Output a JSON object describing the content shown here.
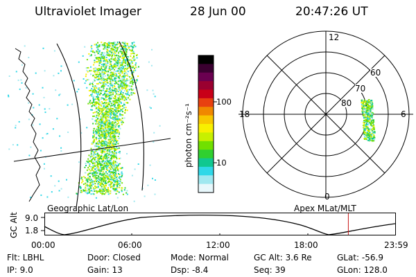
{
  "header": {
    "instrument": "Ultraviolet Imager",
    "date": "28 Jun 00",
    "time": "20:47:26 UT"
  },
  "colorbar": {
    "unit_label": "photon cm⁻²s⁻¹",
    "ticks": [
      "100",
      "10"
    ],
    "scale": "log",
    "colors": [
      "#000000",
      "#3a0030",
      "#6a0050",
      "#9a0030",
      "#c80018",
      "#e84010",
      "#f08800",
      "#f8c800",
      "#f8f000",
      "#c8f000",
      "#70e000",
      "#30d030",
      "#10c890",
      "#30d8e8",
      "#a0e8f0",
      "#e8f8fc"
    ]
  },
  "map_left": {
    "label": "Geographic Lat/Lon"
  },
  "polar_plot": {
    "label": "Apex MLat/MLT",
    "mlt_labels": {
      "top": "12",
      "left": "18",
      "right": "6",
      "bottom": "0"
    },
    "lat_labels": [
      "60",
      "70",
      "80"
    ]
  },
  "altitude_strip": {
    "ylabel": "GC Alt",
    "y_ticks": [
      "9.0",
      "1.8"
    ],
    "x_ticks": [
      "00:00",
      "06:00",
      "12:00",
      "18:00",
      "23:59"
    ],
    "current_time_fraction": 0.8665,
    "marker_color": "#c81414"
  },
  "status": {
    "col1": {
      "flt": "Flt: LBHL",
      "ip": "IP:  9.0"
    },
    "col2": {
      "door": "Door: Closed",
      "gain": "Gain: 13"
    },
    "col3": {
      "mode": "Mode: Normal",
      "dsp": "Dsp:   -8.4"
    },
    "col4": {
      "gcalt": "GC Alt: 3.6 Re",
      "seq": "Seq: 39"
    },
    "col5": {
      "glat": "GLat: -56.9",
      "glon": "GLon: 128.0"
    }
  }
}
